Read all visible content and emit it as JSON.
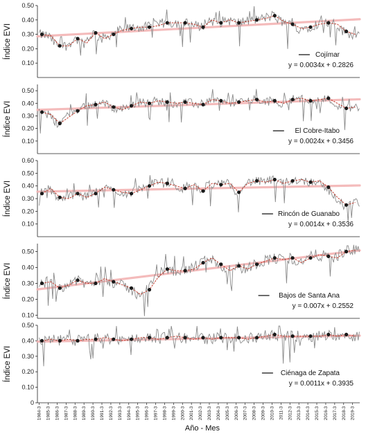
{
  "chart_data": {
    "type": "line",
    "xlabel": "Año - Mes",
    "x_tick_labels": [
      "1984-3",
      "1985-3",
      "1986-3",
      "1987-3",
      "1988-3",
      "1989-3",
      "1990-3",
      "1991-3",
      "1992-3",
      "1993-3",
      "1994-3",
      "1995-3",
      "1996-3",
      "1997-3",
      "1998-3",
      "1999-3",
      "2000-3",
      "2001-3",
      "2002-3",
      "2003-3",
      "2004-3",
      "2005-3",
      "2006-3",
      "2007-3",
      "2008-3",
      "2009-3",
      "2010-3",
      "2011-3",
      "2012-3",
      "2013-3",
      "2014-3",
      "2015-3",
      "2016-3",
      "2017-3",
      "2018-3",
      "2019-3"
    ],
    "panels": [
      {
        "site": "Cojímar",
        "ylabel": "Índice EVI",
        "ylim": [
          0.0,
          0.5
        ],
        "yticks": [
          "0.10",
          "0.20",
          "0.30",
          "0.40",
          "0.50"
        ],
        "equation": "y = 0.0034x + 0.2826",
        "trend": {
          "slope": 0.0034,
          "intercept": 0.2826
        },
        "annual_years": [
          1984,
          1985,
          1986,
          1987,
          1988,
          1989,
          1990,
          1991,
          1992,
          1993,
          1994,
          1995,
          1996,
          1997,
          1998,
          1999,
          2000,
          2001,
          2002,
          2003,
          2004,
          2005,
          2006,
          2007,
          2008,
          2009,
          2010,
          2011,
          2012,
          2013,
          2014,
          2015,
          2016,
          2017,
          2018,
          2019
        ],
        "annual_mean": [
          0.3,
          0.29,
          0.22,
          0.22,
          0.27,
          0.24,
          0.31,
          0.27,
          0.3,
          0.33,
          0.34,
          0.35,
          0.35,
          0.36,
          0.38,
          0.38,
          0.38,
          0.37,
          0.35,
          0.4,
          0.38,
          0.4,
          0.38,
          0.39,
          0.4,
          0.41,
          0.43,
          0.39,
          0.37,
          0.34,
          0.35,
          0.37,
          0.38,
          0.37,
          0.32,
          0.3
        ]
      },
      {
        "site": "El Cobre-Itabo",
        "ylabel": "Índice EVI",
        "ylim": [
          0.0,
          0.55
        ],
        "yticks": [
          "0.10",
          "0.20",
          "0.30",
          "0.40",
          "0.50"
        ],
        "equation": "y = 0.0024x + 0.3456",
        "trend": {
          "slope": 0.0024,
          "intercept": 0.3456
        },
        "annual_years": [
          1984,
          1985,
          1986,
          1987,
          1988,
          1989,
          1990,
          1991,
          1992,
          1993,
          1994,
          1995,
          1996,
          1997,
          1998,
          1999,
          2000,
          2001,
          2002,
          2003,
          2004,
          2005,
          2006,
          2007,
          2008,
          2009,
          2010,
          2011,
          2012,
          2013,
          2014,
          2015,
          2016,
          2017,
          2018,
          2019
        ],
        "annual_mean": [
          0.33,
          0.31,
          0.24,
          0.29,
          0.34,
          0.38,
          0.39,
          0.41,
          0.37,
          0.35,
          0.38,
          0.41,
          0.4,
          0.42,
          0.41,
          0.4,
          0.41,
          0.4,
          0.39,
          0.43,
          0.42,
          0.4,
          0.41,
          0.42,
          0.43,
          0.41,
          0.42,
          0.4,
          0.43,
          0.44,
          0.42,
          0.43,
          0.44,
          0.4,
          0.36,
          0.37
        ]
      },
      {
        "site": "Rincón de Guanabo",
        "ylabel": "Índice EVI",
        "ylim": [
          0.0,
          0.6
        ],
        "yticks": [
          "0.10",
          "0.20",
          "0.30",
          "0.40",
          "0.50",
          "0.60"
        ],
        "equation": "y = 0.0014x + 0.3536",
        "trend": {
          "slope": 0.0014,
          "intercept": 0.3536
        },
        "annual_years": [
          1984,
          1985,
          1986,
          1987,
          1988,
          1989,
          1990,
          1991,
          1992,
          1993,
          1994,
          1995,
          1996,
          1997,
          1998,
          1999,
          2000,
          2001,
          2002,
          2003,
          2004,
          2005,
          2006,
          2007,
          2008,
          2009,
          2010,
          2011,
          2012,
          2013,
          2014,
          2015,
          2016,
          2017,
          2018,
          2019
        ],
        "annual_mean": [
          0.34,
          0.38,
          0.31,
          0.3,
          0.34,
          0.31,
          0.34,
          0.39,
          0.37,
          0.35,
          0.34,
          0.37,
          0.4,
          0.43,
          0.42,
          0.4,
          0.38,
          0.41,
          0.36,
          0.42,
          0.41,
          0.42,
          0.35,
          0.42,
          0.44,
          0.43,
          0.45,
          0.42,
          0.44,
          0.45,
          0.43,
          0.44,
          0.39,
          0.31,
          0.25,
          0.27
        ]
      },
      {
        "site": "Bajos de Santa Ana",
        "ylabel": "Índice EVI",
        "ylim": [
          0.08,
          0.55
        ],
        "yticks": [
          "0.10",
          "0.20",
          "0.30",
          "0.40",
          "0.50"
        ],
        "equation": "y = 0.007x + 0.2552",
        "trend": {
          "slope": 0.007,
          "intercept": 0.2552
        },
        "annual_years": [
          1984,
          1985,
          1986,
          1987,
          1988,
          1989,
          1990,
          1991,
          1992,
          1993,
          1994,
          1995,
          1996,
          1997,
          1998,
          1999,
          2000,
          2001,
          2002,
          2003,
          2004,
          2005,
          2006,
          2007,
          2008,
          2009,
          2010,
          2011,
          2012,
          2013,
          2014,
          2015,
          2016,
          2017,
          2018,
          2019
        ],
        "annual_mean": [
          0.3,
          0.31,
          0.27,
          0.29,
          0.32,
          0.3,
          0.3,
          0.33,
          0.31,
          0.29,
          0.27,
          0.23,
          0.26,
          0.34,
          0.39,
          0.38,
          0.38,
          0.39,
          0.43,
          0.46,
          0.42,
          0.38,
          0.41,
          0.39,
          0.42,
          0.44,
          0.46,
          0.45,
          0.46,
          0.43,
          0.46,
          0.48,
          0.47,
          0.46,
          0.5,
          0.51
        ]
      },
      {
        "site": "Ciénaga de Zapata",
        "ylabel": "Índice EVI",
        "ylim": [
          0.0,
          0.5
        ],
        "yticks": [
          "0",
          "0.10",
          "0.20",
          "0.30",
          "0.40",
          "0.50"
        ],
        "equation": "y = 0.0011x + 0.3935",
        "trend": {
          "slope": 0.0011,
          "intercept": 0.3935
        },
        "annual_years": [
          1984,
          1985,
          1986,
          1987,
          1988,
          1989,
          1990,
          1991,
          1992,
          1993,
          1994,
          1995,
          1996,
          1997,
          1998,
          1999,
          2000,
          2001,
          2002,
          2003,
          2004,
          2005,
          2006,
          2007,
          2008,
          2009,
          2010,
          2011,
          2012,
          2013,
          2014,
          2015,
          2016,
          2017,
          2018,
          2019
        ],
        "annual_mean": [
          0.4,
          0.41,
          0.4,
          0.41,
          0.4,
          0.41,
          0.41,
          0.42,
          0.41,
          0.4,
          0.41,
          0.42,
          0.42,
          0.41,
          0.42,
          0.43,
          0.42,
          0.41,
          0.42,
          0.41,
          0.42,
          0.42,
          0.42,
          0.41,
          0.42,
          0.43,
          0.44,
          0.43,
          0.43,
          0.43,
          0.43,
          0.43,
          0.44,
          0.43,
          0.44,
          0.43
        ]
      }
    ]
  }
}
